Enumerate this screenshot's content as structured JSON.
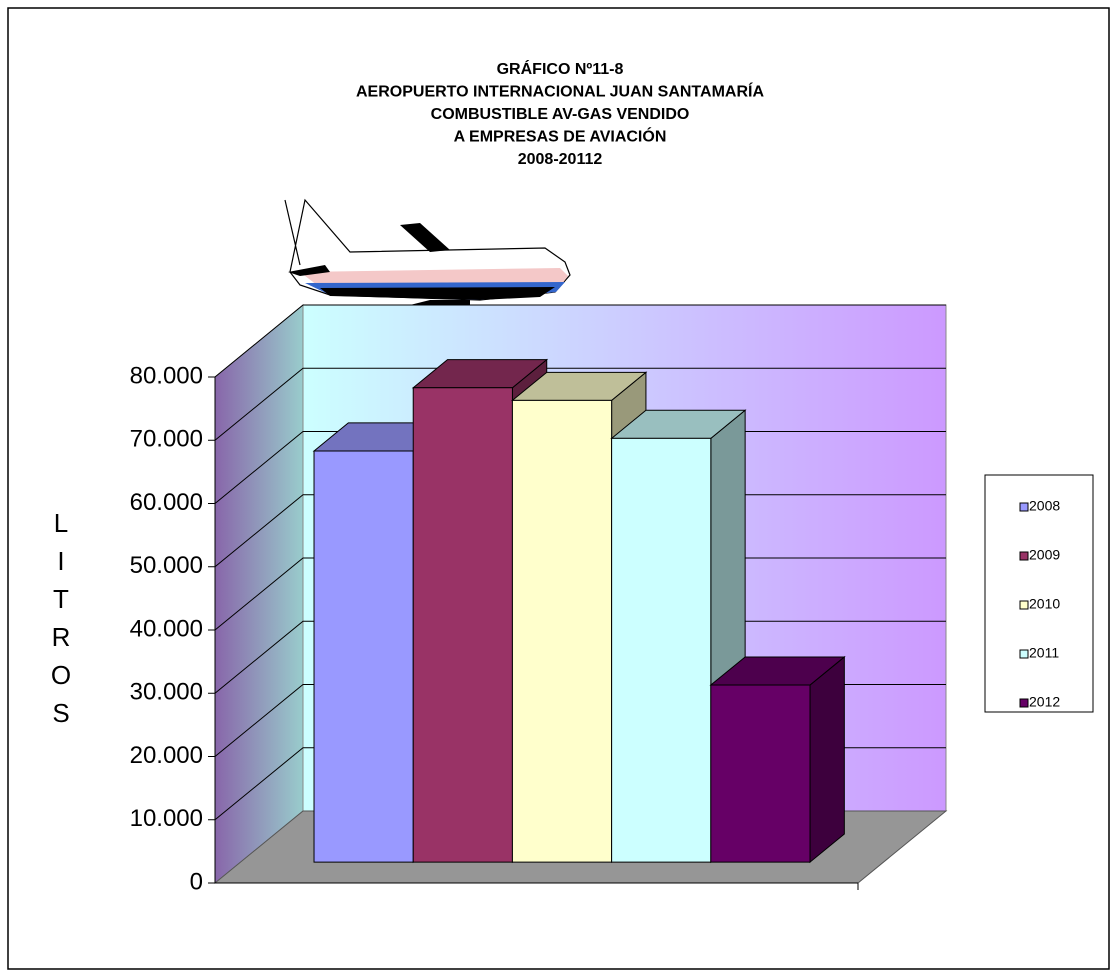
{
  "chart_data": {
    "type": "bar",
    "title": [
      "GRÁFICO Nº11-8",
      "AEROPUERTO INTERNACIONAL JUAN SANTAMARÍA",
      "COMBUSTIBLE AV-GAS VENDIDO",
      "A EMPRESAS DE AVIACIÓN",
      "2008-20112"
    ],
    "y_label": "LITROS",
    "series": [
      {
        "name": "2008",
        "color": "#9999ff",
        "values": [
          65000
        ]
      },
      {
        "name": "2009",
        "color": "#993366",
        "values": [
          75000
        ]
      },
      {
        "name": "2010",
        "color": "#ffffcc",
        "values": [
          73000
        ]
      },
      {
        "name": "2011",
        "color": "#ccffff",
        "values": [
          67000
        ]
      },
      {
        "name": "2012",
        "color": "#660066",
        "values": [
          28000
        ]
      }
    ],
    "ylim": [
      0,
      80000
    ],
    "yticks": [
      0,
      {
        "value": 10000,
        "label": "10.000"
      },
      {
        "value": 20000,
        "label": "20.000"
      },
      {
        "value": 30000,
        "label": "30.000"
      },
      {
        "value": 40000,
        "label": "40.000"
      },
      {
        "value": 50000,
        "label": "50.000"
      },
      {
        "value": 60000,
        "label": "60.000"
      },
      {
        "value": 70000,
        "label": "70.000"
      },
      {
        "value": 80000,
        "label": "80.000"
      }
    ],
    "grid": true,
    "legend": "right"
  }
}
